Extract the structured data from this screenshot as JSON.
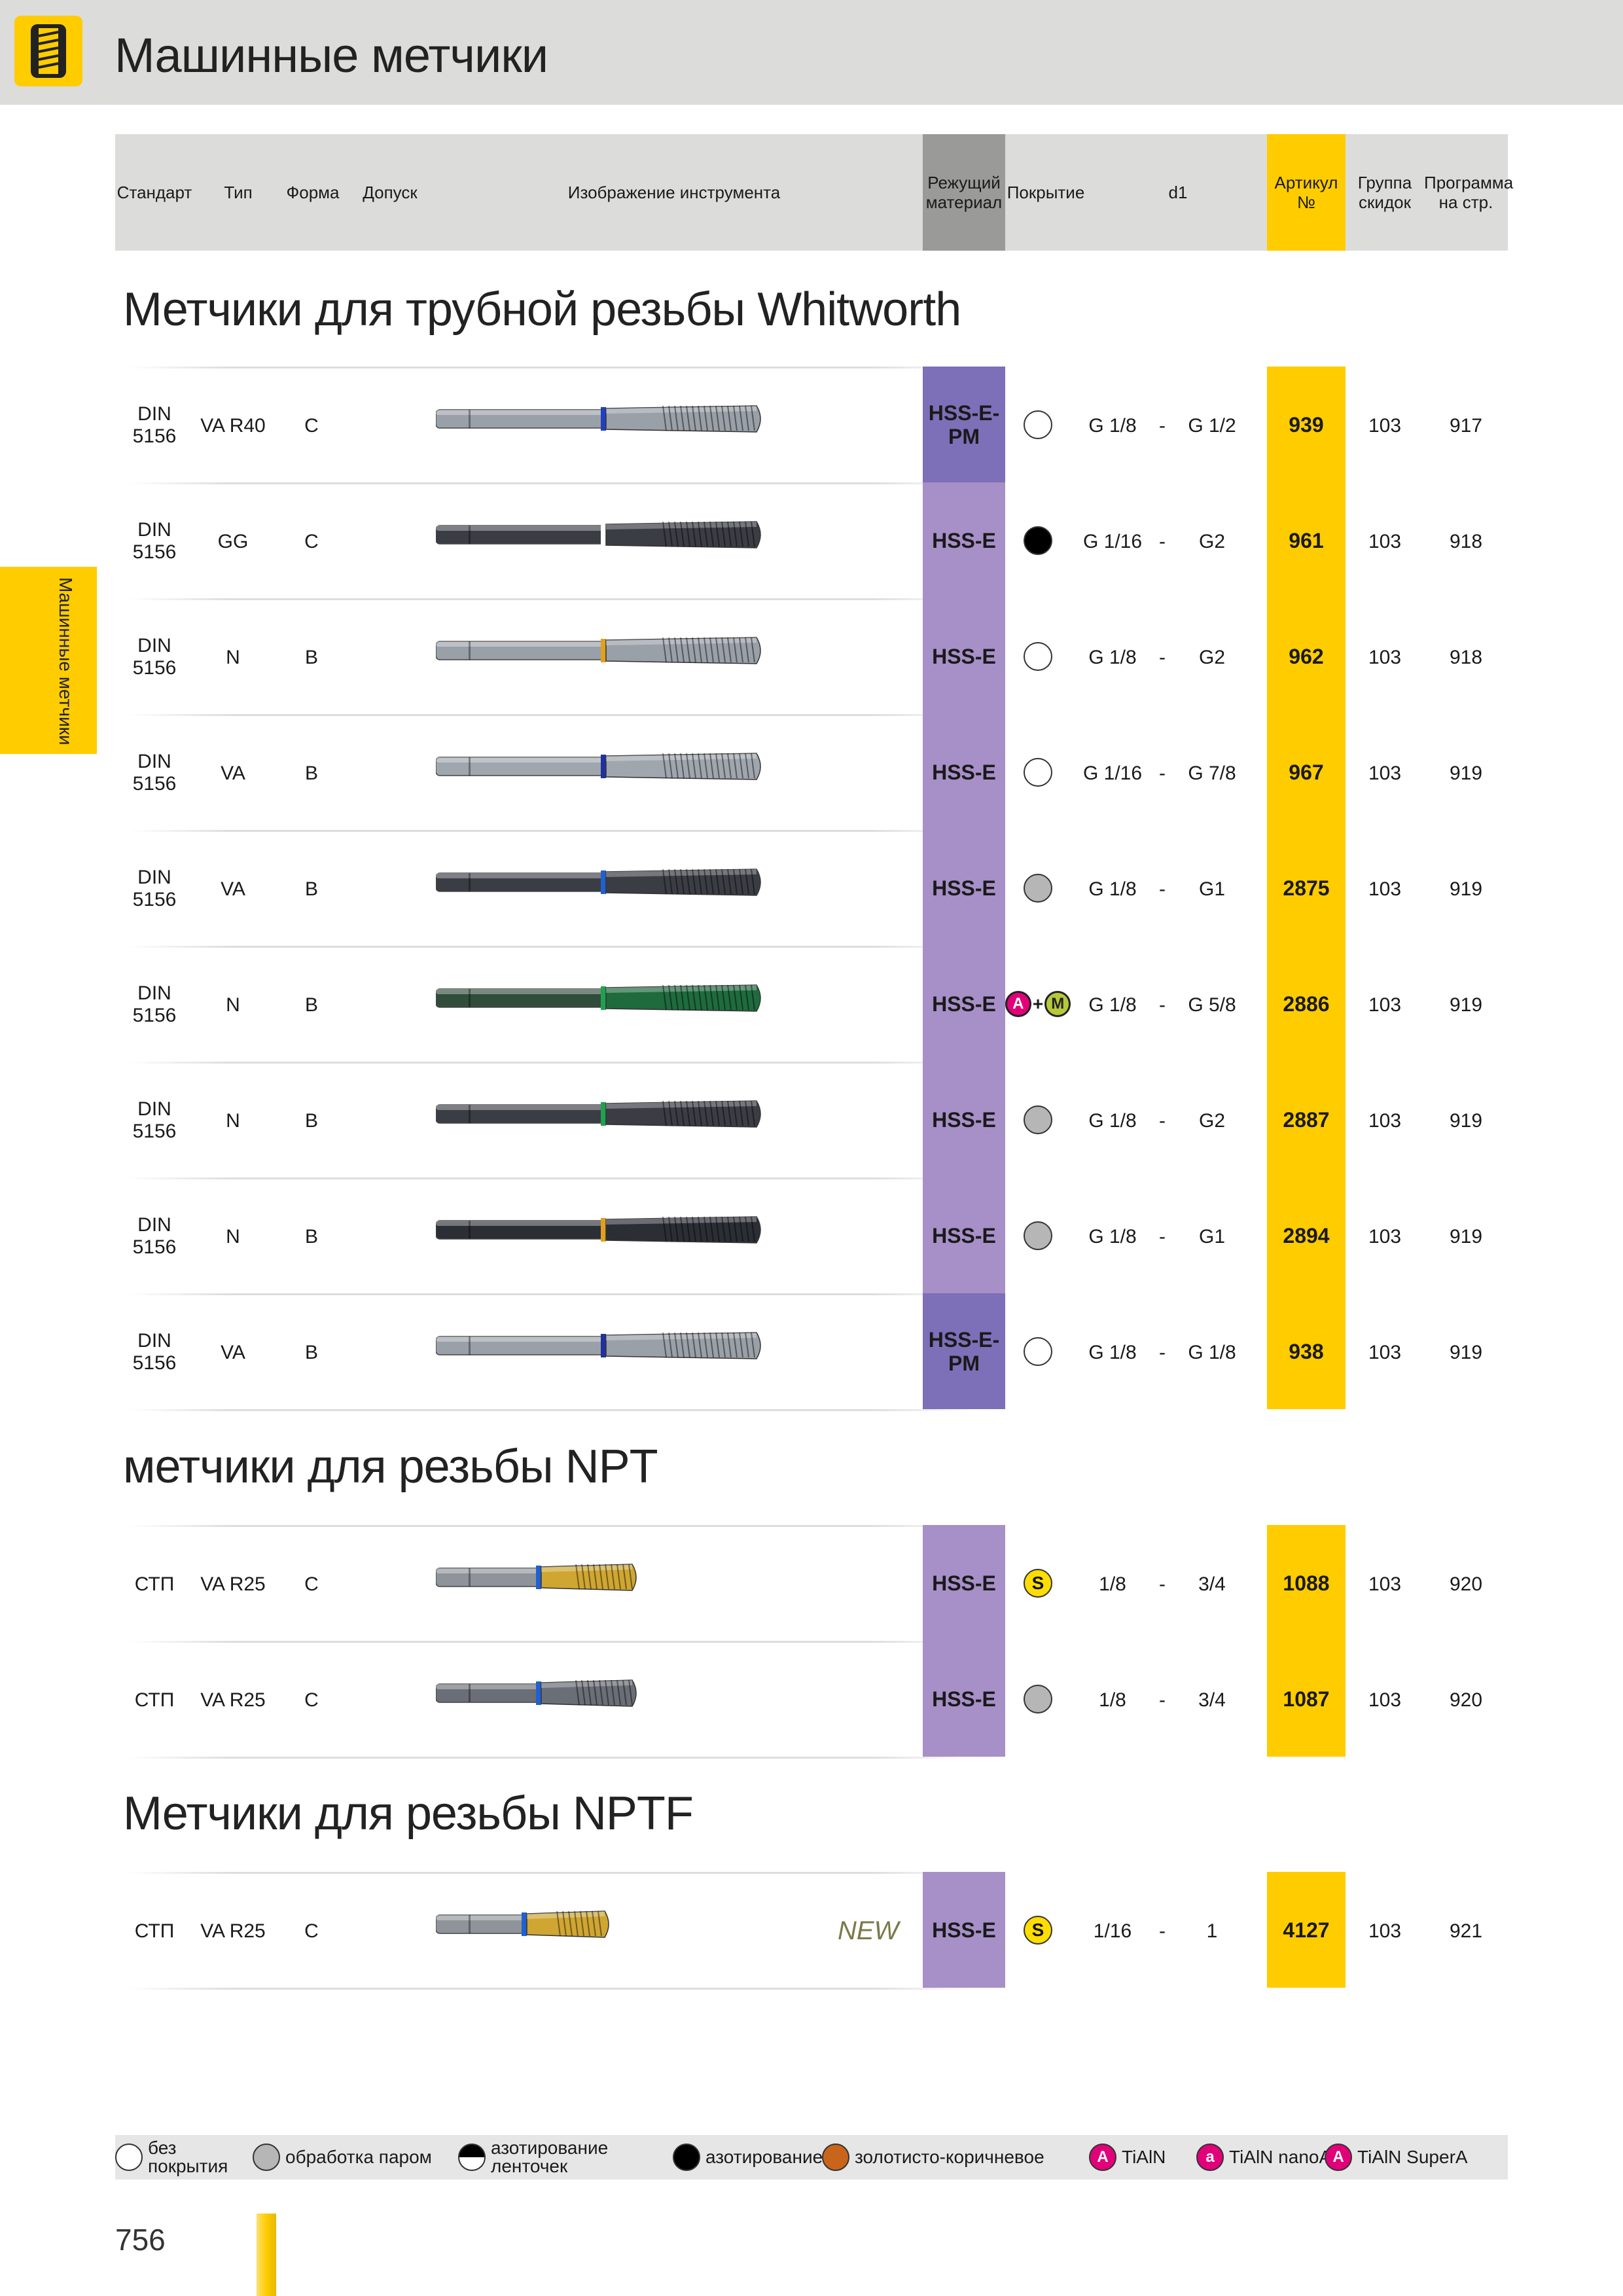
{
  "header": {
    "title": "Машинные метчики"
  },
  "side_tab": {
    "label": "Машинные метчики"
  },
  "columns": {
    "standard": "Стандарт",
    "type": "Тип",
    "form": "Форма",
    "tolerance": "Допуск",
    "image": "Изображение инструмента",
    "material_1": "Режущий",
    "material_2": "материал",
    "coating": "Покрытие",
    "d1": "d1",
    "article_1": "Артикул",
    "article_2": "№",
    "group_1": "Группа",
    "group_2": "скидок",
    "program_1": "Программа",
    "program_2": "на стр."
  },
  "sections": [
    {
      "title": "Метчики для трубной резьбы Whitworth",
      "rows": [
        {
          "std1": "DIN",
          "std2": "5156",
          "type": "VA R40",
          "form": "C",
          "material": "HSS-E-PM",
          "coating": "none",
          "d1_from": "G 1/8",
          "d1_to": "G 1/2",
          "article": "939",
          "group": "103",
          "page": "917"
        },
        {
          "std1": "DIN",
          "std2": "5156",
          "type": "GG",
          "form": "C",
          "material": "HSS-E",
          "coating": "nitrided",
          "d1_from": "G 1/16",
          "d1_to": "G2",
          "article": "961",
          "group": "103",
          "page": "918"
        },
        {
          "std1": "DIN",
          "std2": "5156",
          "type": "N",
          "form": "B",
          "material": "HSS-E",
          "coating": "none",
          "d1_from": "G 1/8",
          "d1_to": "G2",
          "article": "962",
          "group": "103",
          "page": "918"
        },
        {
          "std1": "DIN",
          "std2": "5156",
          "type": "VA",
          "form": "B",
          "material": "HSS-E",
          "coating": "none",
          "d1_from": "G 1/16",
          "d1_to": "G 7/8",
          "article": "967",
          "group": "103",
          "page": "919"
        },
        {
          "std1": "DIN",
          "std2": "5156",
          "type": "VA",
          "form": "B",
          "material": "HSS-E",
          "coating": "steam",
          "d1_from": "G 1/8",
          "d1_to": "G1",
          "article": "2875",
          "group": "103",
          "page": "919"
        },
        {
          "std1": "DIN",
          "std2": "5156",
          "type": "N",
          "form": "B",
          "material": "HSS-E",
          "coating": "A+M",
          "d1_from": "G 1/8",
          "d1_to": "G 5/8",
          "article": "2886",
          "group": "103",
          "page": "919"
        },
        {
          "std1": "DIN",
          "std2": "5156",
          "type": "N",
          "form": "B",
          "material": "HSS-E",
          "coating": "steam",
          "d1_from": "G 1/8",
          "d1_to": "G2",
          "article": "2887",
          "group": "103",
          "page": "919"
        },
        {
          "std1": "DIN",
          "std2": "5156",
          "type": "N",
          "form": "B",
          "material": "HSS-E",
          "coating": "steam",
          "d1_from": "G 1/8",
          "d1_to": "G1",
          "article": "2894",
          "group": "103",
          "page": "919"
        },
        {
          "std1": "DIN",
          "std2": "5156",
          "type": "VA",
          "form": "B",
          "material": "HSS-E-PM",
          "coating": "none",
          "d1_from": "G 1/8",
          "d1_to": "G 1/8",
          "article": "938",
          "group": "103",
          "page": "919"
        }
      ]
    },
    {
      "title": "метчики для резьбы NPT",
      "rows": [
        {
          "std1": "СТП",
          "std2": "",
          "type": "VA R25",
          "form": "C",
          "material": "HSS-E",
          "coating": "S",
          "d1_from": "1/8",
          "d1_to": "3/4",
          "article": "1088",
          "group": "103",
          "page": "920"
        },
        {
          "std1": "СТП",
          "std2": "",
          "type": "VA R25",
          "form": "C",
          "material": "HSS-E",
          "coating": "steam",
          "d1_from": "1/8",
          "d1_to": "3/4",
          "article": "1087",
          "group": "103",
          "page": "920"
        }
      ]
    },
    {
      "title": "Метчики для резьбы NPTF",
      "rows": [
        {
          "std1": "СТП",
          "std2": "",
          "type": "VA R25",
          "form": "C",
          "material": "HSS-E",
          "coating": "S",
          "d1_from": "1/16",
          "d1_to": "1",
          "article": "4127",
          "group": "103",
          "page": "921",
          "new": "NEW"
        }
      ]
    }
  ],
  "legend": [
    {
      "label_1": "без",
      "label_2": "покрытия",
      "color": "#ffffff"
    },
    {
      "label_1": "обработка паром",
      "label_2": "",
      "color": "#b6b6b6"
    },
    {
      "label_1": "азотирование",
      "label_2": "ленточек",
      "color": "half"
    },
    {
      "label_1": "азотирование",
      "label_2": "",
      "color": "#000000"
    },
    {
      "label_1": "золотисто-коричневое",
      "label_2": "",
      "color": "#c8651b"
    },
    {
      "label_1": "TiAlN",
      "label_2": "",
      "color": "#e2007a",
      "letter": "A"
    },
    {
      "label_1": "TiAlN nanoA",
      "label_2": "",
      "color": "#e2007a",
      "letter": "a"
    },
    {
      "label_1": "TiAlN SuperA",
      "label_2": "",
      "color": "#e2007a",
      "letter": "A"
    }
  ],
  "footer": {
    "page_number": "756"
  },
  "colors": {
    "accent": "#ffcc00",
    "material_hsse": "#a78fc8",
    "material_pm": "#7d6fb8",
    "header_grey": "#dcdcdb"
  }
}
